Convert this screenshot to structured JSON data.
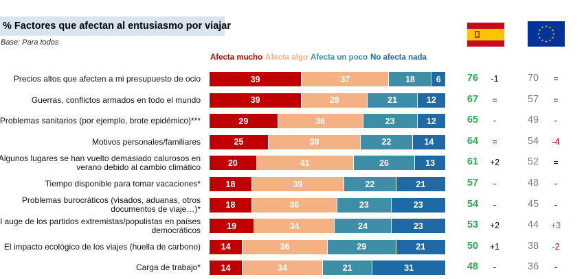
{
  "header": {
    "title": "% Factores que afectan al entusiasmo por viajar",
    "subtitle": "Base: Para todos"
  },
  "flags": {
    "spain": "spain-flag-icon",
    "eu": "eu-flag-icon"
  },
  "chart_data": {
    "type": "bar",
    "orientation": "horizontal",
    "stacked": true,
    "legend_position": "top",
    "categories": [
      "Precios altos que afecten a mi presupuesto de ocio",
      "Guerras, conflictos armados en todo el mundo",
      "Problemas sanitarios (por ejemplo, brote epidémico)***",
      "Motivos personales/familiares",
      "Algunos lugares se han vuelto demasiado calurosos en verano debido al cambio climático",
      "Tiempo disponible para tomar vacaciones*",
      "Problemas burocráticos (visados, aduanas, otros documentos de viaje…)*",
      "El auge de los partidos extremistas/populistas en países democráticos",
      "El impacto ecológico de los viajes (huella de carbono)",
      "Carga de trabajo*"
    ],
    "series": [
      {
        "name": "Afecta mucho",
        "color": "#c00000",
        "values": [
          39,
          39,
          29,
          25,
          20,
          18,
          18,
          19,
          14,
          14
        ]
      },
      {
        "name": "Afecta algo",
        "color": "#f4b183",
        "values": [
          37,
          28,
          36,
          39,
          41,
          39,
          36,
          34,
          36,
          34
        ]
      },
      {
        "name": "Afecta un poco",
        "color": "#3e8ea8",
        "values": [
          18,
          21,
          23,
          22,
          26,
          22,
          23,
          24,
          29,
          21
        ]
      },
      {
        "name": "No afecta nada",
        "color": "#1f6aa5",
        "values": [
          6,
          12,
          12,
          14,
          13,
          21,
          23,
          23,
          21,
          31
        ]
      }
    ],
    "spain_total": [
      76,
      67,
      65,
      64,
      61,
      57,
      54,
      53,
      50,
      48
    ],
    "spain_change": [
      "-1",
      "=",
      "-",
      "=",
      "+2",
      "-",
      "-",
      "+2",
      "+1",
      "-"
    ],
    "eu_total": [
      70,
      57,
      49,
      54,
      52,
      48,
      45,
      44,
      38,
      36
    ],
    "eu_change": [
      "=",
      "=",
      "-",
      "-4",
      "=",
      "-",
      "-",
      "+3",
      "-2",
      "-"
    ],
    "colors": {
      "total": "#2eaa4e",
      "eu_total": "#7f7f7f",
      "increase": "#2eaa4e",
      "decrease": "#c00000",
      "neutral": "#000000"
    }
  }
}
